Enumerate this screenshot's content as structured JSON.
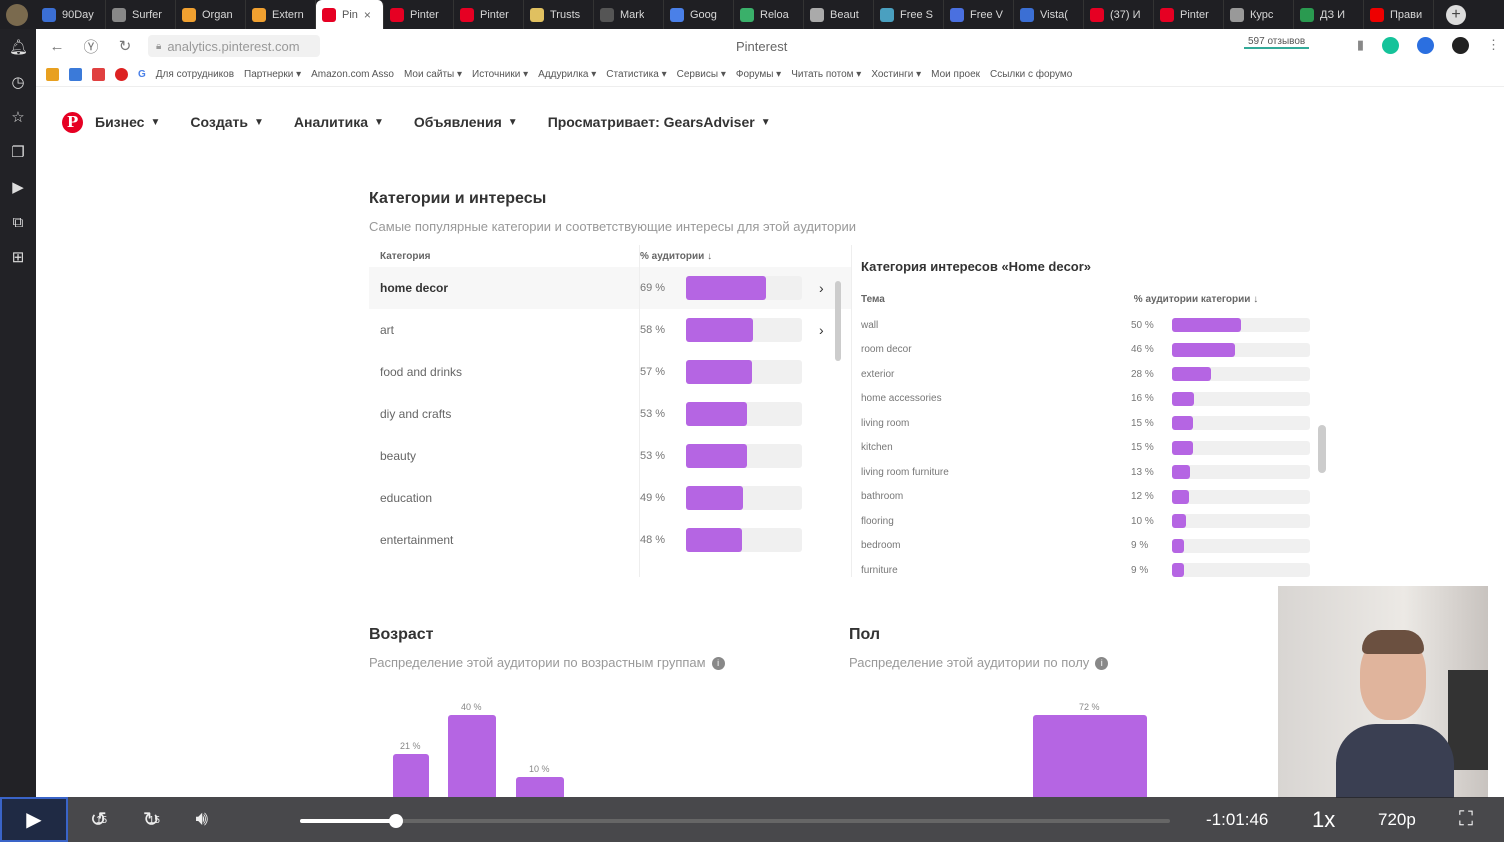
{
  "browser": {
    "tabs": [
      {
        "label": "90Day",
        "color": "#3b6fd4"
      },
      {
        "label": "Surfer",
        "color": "#888"
      },
      {
        "label": "Organ",
        "color": "#f0a030"
      },
      {
        "label": "Extern",
        "color": "#f0a030"
      },
      {
        "label": "Pin",
        "color": "#e60023",
        "active": true
      },
      {
        "label": "Pinter",
        "color": "#e60023"
      },
      {
        "label": "Pinter",
        "color": "#e60023"
      },
      {
        "label": "Trusts",
        "color": "#e0c060"
      },
      {
        "label": "Mark",
        "color": "#555"
      },
      {
        "label": "Goog",
        "color": "#4a80e8"
      },
      {
        "label": "Reloa",
        "color": "#3ab06a"
      },
      {
        "label": "Beaut",
        "color": "#aaa"
      },
      {
        "label": "Free S",
        "color": "#4aa0c0"
      },
      {
        "label": "Free V",
        "color": "#4a70e0"
      },
      {
        "label": "Vista(",
        "color": "#3b6fd4"
      },
      {
        "label": "(37) И",
        "color": "#e60023"
      },
      {
        "label": "Pinter",
        "color": "#e60023"
      },
      {
        "label": "Курс",
        "color": "#999"
      },
      {
        "label": "ДЗ И",
        "color": "#2a9a50"
      },
      {
        "label": "Прави",
        "color": "#e00"
      }
    ],
    "url": "analytics.pinterest.com",
    "page_title": "Pinterest",
    "reviews": "597 отзывов",
    "bookmarks": [
      "Для сотрудников",
      "Партнерки ▾",
      "Amazon.com Asso",
      "Мои сайты ▾",
      "Источники ▾",
      "Аддурилка ▾",
      "Статистика ▾",
      "Сервисы ▾",
      "Форумы ▾",
      "Читать потом ▾",
      "Хостинги ▾",
      "Мои проек",
      "Ссылки с форумо"
    ]
  },
  "nav": {
    "logo": "P",
    "business": "Бизнес",
    "create": "Создать",
    "analytics": "Аналитика",
    "ads": "Объявления",
    "viewing": "Просматривает: GearsAdviser"
  },
  "categories": {
    "title": "Категории и интересы",
    "subtitle": "Самые популярные категории и соответствующие интересы для этой аудитории",
    "col_category": "Категория",
    "col_audience": "% аудитории",
    "rows": [
      {
        "name": "home decor",
        "pct": "69 %",
        "value": 69
      },
      {
        "name": "art",
        "pct": "58 %",
        "value": 58
      },
      {
        "name": "food and drinks",
        "pct": "57 %",
        "value": 57
      },
      {
        "name": "diy and crafts",
        "pct": "53 %",
        "value": 53
      },
      {
        "name": "beauty",
        "pct": "53 %",
        "value": 53
      },
      {
        "name": "education",
        "pct": "49 %",
        "value": 49
      },
      {
        "name": "entertainment",
        "pct": "48 %",
        "value": 48
      }
    ]
  },
  "interests": {
    "title": "Категория интересов «Home decor»",
    "col_topic": "Тема",
    "col_pct": "% аудитории категории",
    "rows": [
      {
        "name": "wall",
        "pct": "50 %",
        "value": 50
      },
      {
        "name": "room decor",
        "pct": "46 %",
        "value": 46
      },
      {
        "name": "exterior",
        "pct": "28 %",
        "value": 28
      },
      {
        "name": "home accessories",
        "pct": "16 %",
        "value": 16
      },
      {
        "name": "living room",
        "pct": "15 %",
        "value": 15
      },
      {
        "name": "kitchen",
        "pct": "15 %",
        "value": 15
      },
      {
        "name": "living room furniture",
        "pct": "13 %",
        "value": 13
      },
      {
        "name": "bathroom",
        "pct": "12 %",
        "value": 12
      },
      {
        "name": "flooring",
        "pct": "10 %",
        "value": 10
      },
      {
        "name": "bedroom",
        "pct": "9 %",
        "value": 9
      },
      {
        "name": "furniture",
        "pct": "9 %",
        "value": 9
      }
    ]
  },
  "age": {
    "title": "Возраст",
    "subtitle": "Распределение этой аудитории по возрастным группам",
    "bars": [
      {
        "label": "40 %",
        "value": 40
      },
      {
        "label": "21 %",
        "value": 21
      },
      {
        "label": "10 %",
        "value": 10
      }
    ]
  },
  "gender": {
    "title": "Пол",
    "subtitle": "Распределение этой аудитории по полу",
    "bars": [
      {
        "label": "72 %",
        "value": 72
      }
    ]
  },
  "player": {
    "rewind": "15",
    "forward": "15",
    "time_left": "-1:01:46",
    "speed": "1x",
    "quality": "720p",
    "progress": 0.11
  }
}
